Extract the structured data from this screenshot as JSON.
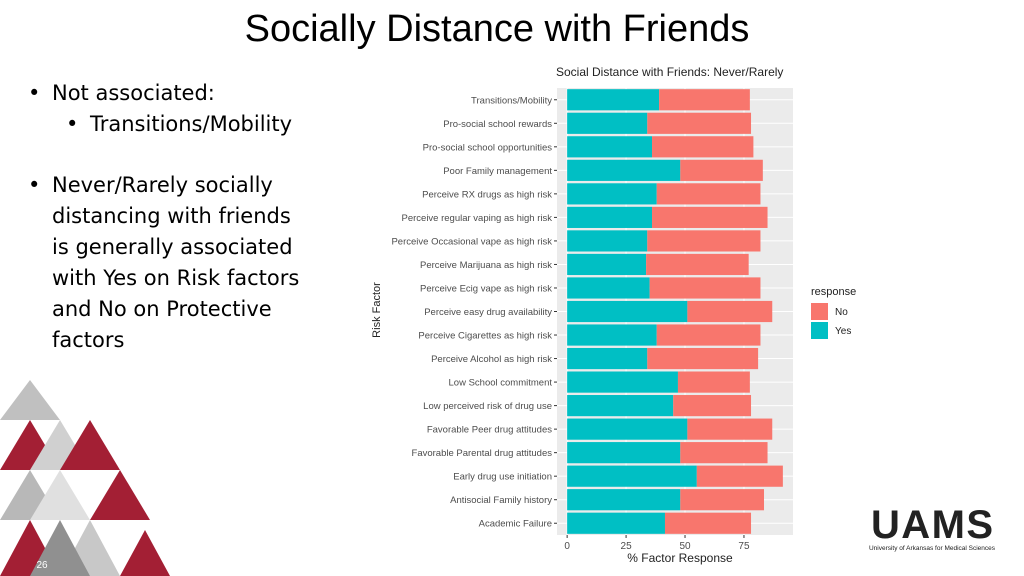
{
  "slide": {
    "title": "Socially Distance with Friends",
    "bullets": [
      {
        "text": "Not associated:",
        "level": 1
      },
      {
        "text": "Transitions/Mobility",
        "level": 2
      },
      {
        "text": "Never/Rarely socially distancing with friends is generally associated with Yes on Risk factors and No on Protective factors",
        "level": 1
      }
    ],
    "page_number": "26",
    "logo": "UAMS",
    "logo_subtitle": "University of Arkansas for Medical Sciences"
  },
  "chart_data": {
    "type": "stacked-barh",
    "title": "Social Distance with Friends: Never/Rarely",
    "x_label": "% Factor Response",
    "y_label": "Risk Factor",
    "legend_title": "response",
    "categories": [
      "Transitions/Mobility",
      "Pro-social school rewards",
      "Pro-social school opportunities",
      "Poor Family management",
      "Perceive RX drugs as high risk",
      "Perceive regular vaping as high risk",
      "Perceive Occasional vape as high risk",
      "Perceive Marijuana as high risk",
      "Perceive Ecig vape as high risk",
      "Perceive easy drug availability",
      "Perceive Cigarettes as high risk",
      "Perceive Alcohol as high risk",
      "Low School commitment",
      "Low perceived risk of drug use",
      "Favorable Peer drug attitudes",
      "Favorable Parental drug attitudes",
      "Early drug use initiation",
      "Antisocial Family history",
      "Academic Failure"
    ],
    "series": [
      {
        "name": "No",
        "color": "#F8766D",
        "values": [
          38.5,
          44,
          43,
          35,
          44,
          49,
          48,
          43.5,
          47,
          36,
          44,
          47,
          30.5,
          33,
          36,
          37,
          36.5,
          35.5,
          36.5
        ]
      },
      {
        "name": "Yes",
        "color": "#00BFC4",
        "values": [
          39,
          34,
          36,
          48,
          38,
          36,
          34,
          33.5,
          35,
          51,
          38,
          34,
          47,
          45,
          51,
          48,
          55,
          48,
          41.5
        ]
      }
    ],
    "xlim": [
      -4.3,
      95.8
    ],
    "xticks": [
      0,
      25,
      50,
      75
    ],
    "grid": true,
    "legend": "right"
  }
}
